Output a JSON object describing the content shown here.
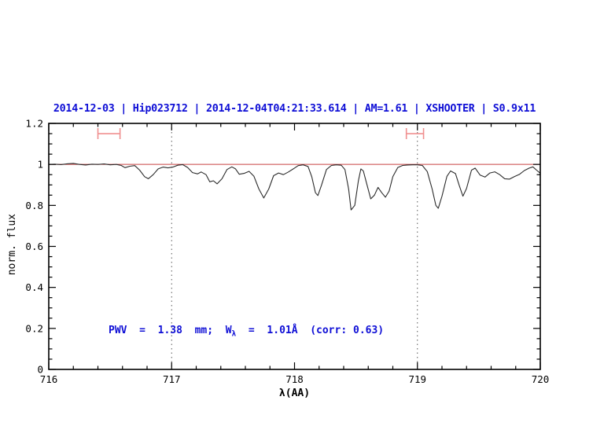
{
  "header": {
    "title": "2014-12-03 | Hip023712 | 2014-12-04T04:21:33.614 | AM=1.61 | XSHOOTER | S0.9x11",
    "color": "#0f0fd6"
  },
  "annotation": {
    "prefix": "PWV  =  1.38  mm;  W",
    "sub": "λ",
    "suffix": "  =  1.01Å  (corr: 0.63)",
    "color": "#0f0fd6",
    "pwv_mm": "1.38",
    "equivalent_width": "1.01Å",
    "corr": "0.63"
  },
  "chart_data": {
    "type": "line",
    "title": "2014-12-03 | Hip023712 | 2014-12-04T04:21:33.614 | AM=1.61 | XSHOOTER | S0.9x11",
    "xlabel": "λ(AA)",
    "ylabel": "norm. flux",
    "xlim": [
      716,
      720
    ],
    "ylim": [
      0,
      1.2
    ],
    "grid": "off",
    "legend": "none",
    "x_major_ticks": [
      716,
      717,
      718,
      719,
      720
    ],
    "x_tick_labels": [
      "716",
      "717",
      "718",
      "719",
      "720"
    ],
    "x_minor_step": 0.2,
    "y_major_ticks": [
      0,
      0.2,
      0.4,
      0.6,
      0.8,
      1,
      1.2
    ],
    "y_tick_labels": [
      "0",
      "0.2",
      "0.4",
      "0.6",
      "0.8",
      "1",
      "1.2"
    ],
    "y_minor_step": 0.05,
    "frame_color": "#000000",
    "vlines": [
      {
        "x": 717,
        "style": "dotted",
        "color": "#555555"
      },
      {
        "x": 719,
        "style": "dotted",
        "color": "#555555"
      }
    ],
    "range_markers": [
      {
        "x1": 716.4,
        "x2": 716.58,
        "y": 1.15,
        "color": "#f09090"
      },
      {
        "x1": 718.91,
        "x2": 719.05,
        "y": 1.15,
        "color": "#f09090"
      }
    ],
    "series": [
      {
        "name": "continuum",
        "color": "#c84040",
        "points": [
          [
            716,
            1
          ],
          [
            720,
            1
          ]
        ]
      },
      {
        "name": "spectrum",
        "color": "#2b2b2b",
        "points": [
          [
            716.0,
            1.0
          ],
          [
            716.05,
            1.001
          ],
          [
            716.1,
            0.999
          ],
          [
            716.15,
            1.003
          ],
          [
            716.2,
            1.005
          ],
          [
            716.25,
            1.0
          ],
          [
            716.3,
            0.997
          ],
          [
            716.35,
            1.001
          ],
          [
            716.4,
            1.0
          ],
          [
            716.45,
            1.002
          ],
          [
            716.5,
            0.998
          ],
          [
            716.55,
            1.0
          ],
          [
            716.59,
            0.995
          ],
          [
            716.62,
            0.984
          ],
          [
            716.66,
            0.991
          ],
          [
            716.7,
            0.994
          ],
          [
            716.74,
            0.972
          ],
          [
            716.78,
            0.94
          ],
          [
            716.81,
            0.93
          ],
          [
            716.85,
            0.95
          ],
          [
            716.89,
            0.978
          ],
          [
            716.93,
            0.987
          ],
          [
            716.97,
            0.983
          ],
          [
            717.01,
            0.987
          ],
          [
            717.05,
            0.996
          ],
          [
            717.09,
            0.999
          ],
          [
            717.13,
            0.985
          ],
          [
            717.17,
            0.96
          ],
          [
            717.21,
            0.954
          ],
          [
            717.24,
            0.963
          ],
          [
            717.28,
            0.95
          ],
          [
            717.31,
            0.915
          ],
          [
            717.34,
            0.92
          ],
          [
            717.37,
            0.905
          ],
          [
            717.41,
            0.93
          ],
          [
            717.45,
            0.975
          ],
          [
            717.49,
            0.988
          ],
          [
            717.52,
            0.978
          ],
          [
            717.55,
            0.952
          ],
          [
            717.59,
            0.956
          ],
          [
            717.63,
            0.966
          ],
          [
            717.67,
            0.942
          ],
          [
            717.71,
            0.88
          ],
          [
            717.75,
            0.836
          ],
          [
            717.79,
            0.88
          ],
          [
            717.83,
            0.945
          ],
          [
            717.87,
            0.958
          ],
          [
            717.91,
            0.95
          ],
          [
            717.95,
            0.963
          ],
          [
            717.99,
            0.978
          ],
          [
            718.03,
            0.994
          ],
          [
            718.07,
            0.998
          ],
          [
            718.11,
            0.99
          ],
          [
            718.14,
            0.94
          ],
          [
            718.17,
            0.862
          ],
          [
            718.19,
            0.848
          ],
          [
            718.22,
            0.9
          ],
          [
            718.26,
            0.975
          ],
          [
            718.3,
            0.995
          ],
          [
            718.34,
            0.998
          ],
          [
            718.38,
            0.996
          ],
          [
            718.41,
            0.975
          ],
          [
            718.44,
            0.88
          ],
          [
            718.46,
            0.778
          ],
          [
            718.49,
            0.8
          ],
          [
            718.52,
            0.92
          ],
          [
            718.54,
            0.978
          ],
          [
            718.56,
            0.968
          ],
          [
            718.59,
            0.9
          ],
          [
            718.62,
            0.832
          ],
          [
            718.65,
            0.85
          ],
          [
            718.68,
            0.888
          ],
          [
            718.71,
            0.862
          ],
          [
            718.74,
            0.84
          ],
          [
            718.77,
            0.87
          ],
          [
            718.8,
            0.94
          ],
          [
            718.84,
            0.985
          ],
          [
            718.88,
            0.995
          ],
          [
            718.92,
            0.997
          ],
          [
            718.96,
            0.998
          ],
          [
            719.0,
            0.998
          ],
          [
            719.04,
            0.995
          ],
          [
            719.08,
            0.965
          ],
          [
            719.12,
            0.88
          ],
          [
            719.15,
            0.8
          ],
          [
            719.17,
            0.786
          ],
          [
            719.2,
            0.845
          ],
          [
            719.24,
            0.942
          ],
          [
            719.27,
            0.968
          ],
          [
            719.31,
            0.955
          ],
          [
            719.34,
            0.898
          ],
          [
            719.37,
            0.845
          ],
          [
            719.4,
            0.882
          ],
          [
            719.44,
            0.972
          ],
          [
            719.47,
            0.982
          ],
          [
            719.51,
            0.948
          ],
          [
            719.55,
            0.938
          ],
          [
            719.59,
            0.958
          ],
          [
            719.63,
            0.964
          ],
          [
            719.67,
            0.95
          ],
          [
            719.71,
            0.93
          ],
          [
            719.75,
            0.928
          ],
          [
            719.79,
            0.941
          ],
          [
            719.83,
            0.951
          ],
          [
            719.87,
            0.97
          ],
          [
            719.91,
            0.982
          ],
          [
            719.94,
            0.988
          ],
          [
            719.97,
            0.972
          ],
          [
            720.0,
            0.957
          ]
        ]
      }
    ],
    "annotation": {
      "text": "PWV = 1.38 mm; W_λ = 1.01Å (corr: 0.63)",
      "x": 716.5,
      "y": 0.19
    }
  }
}
